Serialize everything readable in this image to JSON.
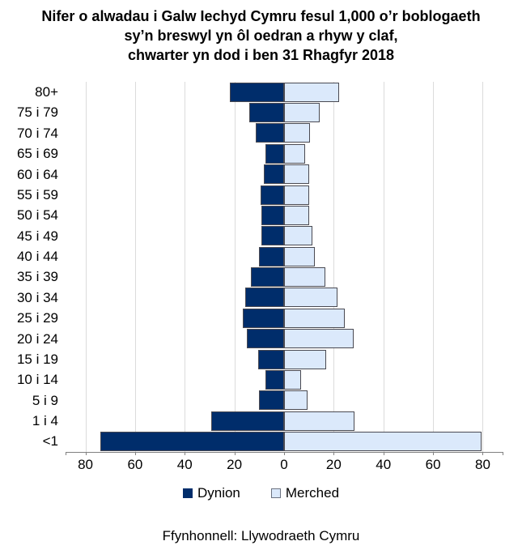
{
  "title": {
    "lines": [
      "Nifer o alwadau i Galw Iechyd Cymru fesul 1,000 o’r boblogaeth",
      "sy’n breswyl yn ôl oedran a rhyw y claf,",
      "chwarter yn dod i ben 31 Rhagfyr 2018"
    ]
  },
  "source": "Ffynhonnell: Llywodraeth Cymru",
  "legend": {
    "items": [
      {
        "label": "Dynion",
        "color": "#002D6B"
      },
      {
        "label": "Merched",
        "color": "#DBE9FB"
      }
    ]
  },
  "colors": {
    "male": "#002D6B",
    "female": "#DBE9FB",
    "bar_border": "#4A4A52",
    "gridline": "#DBDBDB",
    "axis": "#808080"
  },
  "chart_data": {
    "type": "bar",
    "variant": "population-pyramid",
    "title": "Nifer o alwadau i Galw Iechyd Cymru fesul 1,000 o’r boblogaeth sy’n breswyl yn ôl oedran a rhyw y claf, chwarter yn dod i ben 31 Rhagfyr 2018",
    "categories": [
      "80+",
      "75 i 79",
      "70 i 74",
      "65 i 69",
      "60 i 64",
      "55 i 59",
      "50 i 54",
      "45 i 49",
      "40 i 44",
      "35 i 39",
      "30 i 34",
      "25 i 29",
      "20 i 24",
      "15 i 19",
      "10 i 14",
      "5 i 9",
      "1 i 4",
      "<1"
    ],
    "series": [
      {
        "name": "Dynion",
        "side": "left",
        "color": "#002D6B",
        "values": [
          22,
          14,
          11.5,
          7.5,
          8,
          9.5,
          9,
          9,
          10,
          13.5,
          15.5,
          16.5,
          15,
          10.5,
          7.5,
          10,
          29.5,
          74
        ]
      },
      {
        "name": "Merched",
        "side": "right",
        "color": "#DBE9FB",
        "values": [
          22,
          14.5,
          10.5,
          8.5,
          10,
          10,
          10,
          11.5,
          12.5,
          16.5,
          21.5,
          24.5,
          28,
          17,
          7,
          9.5,
          28.5,
          79.5
        ]
      }
    ],
    "x_axis": {
      "half_domain": 88,
      "ticks": [
        {
          "v": -80,
          "label": "80"
        },
        {
          "v": -60,
          "label": "60"
        },
        {
          "v": -40,
          "label": "40"
        },
        {
          "v": -20,
          "label": "20"
        },
        {
          "v": 0,
          "label": "0"
        },
        {
          "v": 20,
          "label": "20"
        },
        {
          "v": 40,
          "label": "40"
        },
        {
          "v": 60,
          "label": "60"
        },
        {
          "v": 80,
          "label": "80"
        }
      ]
    },
    "grid": true,
    "legend_position": "bottom"
  }
}
